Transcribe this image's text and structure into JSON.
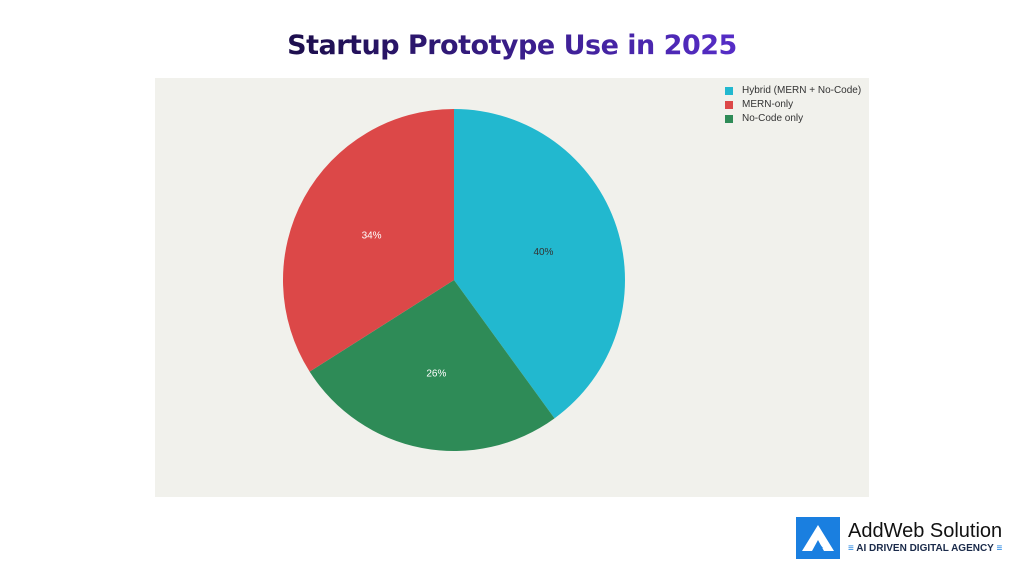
{
  "chart_data": {
    "type": "pie",
    "title": "Startup Prototype Use in 2025",
    "categories": [
      "Hybrid (MERN + No-Code)",
      "MERN-only",
      "No-Code only"
    ],
    "values": [
      40,
      34,
      26
    ],
    "labels": [
      "40%",
      "34%",
      "26%"
    ],
    "colors": [
      "#22b8cf",
      "#dc4848",
      "#2e8b57"
    ],
    "slice_order": [
      0,
      2,
      1
    ],
    "legend_position": "top-right",
    "background": "#f1f1ec"
  },
  "logo": {
    "name": "AddWeb Solution",
    "tagline": "AI DRIVEN DIGITAL AGENCY",
    "color": "#1a7fe0"
  }
}
